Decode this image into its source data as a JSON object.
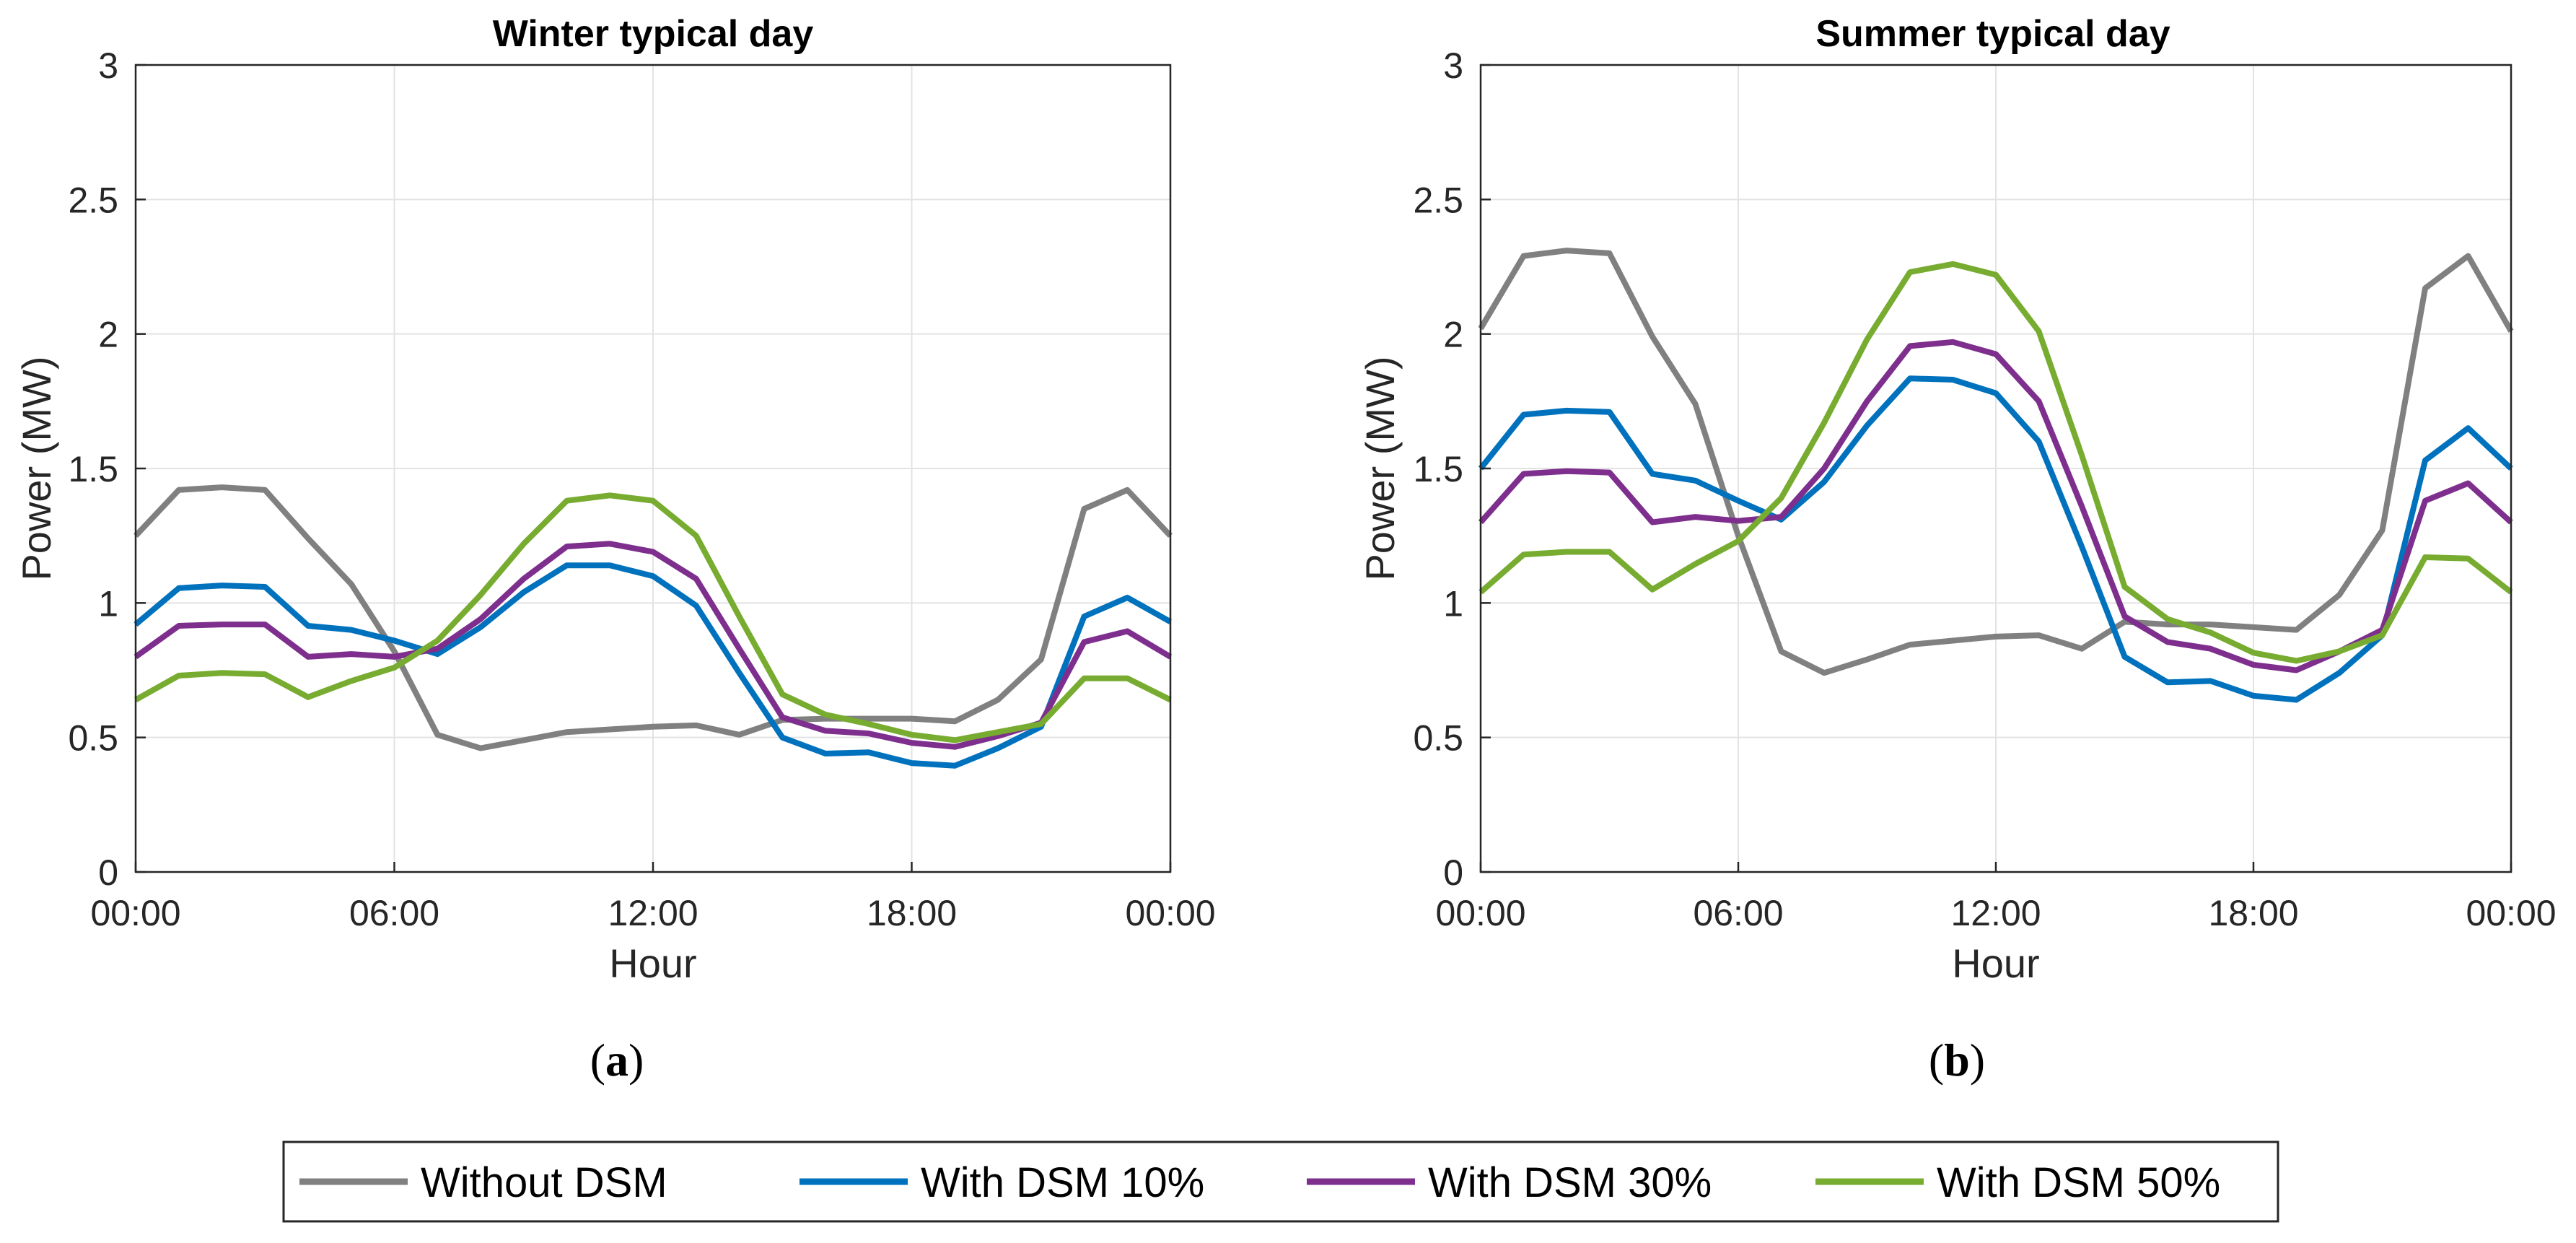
{
  "chart_data": [
    {
      "type": "line",
      "panel_label": "a",
      "title": "Winter typical day",
      "xlabel": "Hour",
      "ylabel": "Power (MW)",
      "xlim": [
        0,
        24
      ],
      "ylim": [
        0,
        3
      ],
      "grid": true,
      "x": [
        0,
        1,
        2,
        3,
        4,
        5,
        6,
        7,
        8,
        9,
        10,
        11,
        12,
        13,
        14,
        15,
        16,
        17,
        18,
        19,
        20,
        21,
        22,
        23,
        24
      ],
      "xticks": [
        0,
        6,
        12,
        18,
        24
      ],
      "xtick_labels": [
        "00:00",
        "06:00",
        "12:00",
        "18:00",
        "00:00"
      ],
      "yticks": [
        0,
        0.5,
        1,
        1.5,
        2,
        2.5,
        3
      ],
      "ytick_labels": [
        "0",
        "0.5",
        "1",
        "1.5",
        "2",
        "2.5",
        "3"
      ],
      "series": [
        {
          "name": "Without DSM",
          "values": [
            1.25,
            1.42,
            1.43,
            1.42,
            1.24,
            1.07,
            0.82,
            0.51,
            0.46,
            0.49,
            0.52,
            0.53,
            0.54,
            0.545,
            0.51,
            0.565,
            0.57,
            0.57,
            0.57,
            0.56,
            0.64,
            0.79,
            1.35,
            1.42,
            1.25
          ]
        },
        {
          "name": "With DSM 10%",
          "values": [
            0.92,
            1.055,
            1.065,
            1.06,
            0.915,
            0.9,
            0.86,
            0.81,
            0.91,
            1.04,
            1.14,
            1.14,
            1.1,
            0.99,
            0.74,
            0.5,
            0.44,
            0.445,
            0.405,
            0.395,
            0.46,
            0.54,
            0.95,
            1.02,
            0.93
          ]
        },
        {
          "name": "With DSM 30%",
          "values": [
            0.8,
            0.915,
            0.92,
            0.92,
            0.8,
            0.81,
            0.8,
            0.83,
            0.94,
            1.09,
            1.21,
            1.22,
            1.19,
            1.09,
            0.83,
            0.575,
            0.525,
            0.515,
            0.48,
            0.465,
            0.505,
            0.555,
            0.855,
            0.895,
            0.8
          ]
        },
        {
          "name": "With DSM 50%",
          "values": [
            0.64,
            0.73,
            0.74,
            0.735,
            0.65,
            0.71,
            0.76,
            0.86,
            1.03,
            1.22,
            1.38,
            1.4,
            1.38,
            1.25,
            0.95,
            0.66,
            0.585,
            0.55,
            0.51,
            0.49,
            0.52,
            0.55,
            0.72,
            0.72,
            0.64
          ]
        }
      ]
    },
    {
      "type": "line",
      "panel_label": "b",
      "title": "Summer typical day",
      "xlabel": "Hour",
      "ylabel": "Power (MW)",
      "xlim": [
        0,
        24
      ],
      "ylim": [
        0,
        3
      ],
      "grid": true,
      "x": [
        0,
        1,
        2,
        3,
        4,
        5,
        6,
        7,
        8,
        9,
        10,
        11,
        12,
        13,
        14,
        15,
        16,
        17,
        18,
        19,
        20,
        21,
        22,
        23,
        24
      ],
      "xticks": [
        0,
        6,
        12,
        18,
        24
      ],
      "xtick_labels": [
        "00:00",
        "06:00",
        "12:00",
        "18:00",
        "00:00"
      ],
      "yticks": [
        0,
        0.5,
        1,
        1.5,
        2,
        2.5,
        3
      ],
      "ytick_labels": [
        "0",
        "0.5",
        "1",
        "1.5",
        "2",
        "2.5",
        "3"
      ],
      "series": [
        {
          "name": "Without DSM",
          "values": [
            2.02,
            2.29,
            2.31,
            2.3,
            1.99,
            1.74,
            1.25,
            0.82,
            0.74,
            0.79,
            0.845,
            0.86,
            0.875,
            0.88,
            0.83,
            0.93,
            0.92,
            0.92,
            0.91,
            0.9,
            1.03,
            1.27,
            2.17,
            2.29,
            2.01
          ]
        },
        {
          "name": "With DSM 10%",
          "values": [
            1.5,
            1.7,
            1.715,
            1.71,
            1.48,
            1.455,
            1.38,
            1.31,
            1.45,
            1.66,
            1.835,
            1.83,
            1.78,
            1.6,
            1.21,
            0.8,
            0.705,
            0.71,
            0.655,
            0.64,
            0.74,
            0.88,
            1.53,
            1.65,
            1.5
          ]
        },
        {
          "name": "With DSM 30%",
          "values": [
            1.3,
            1.48,
            1.49,
            1.485,
            1.3,
            1.32,
            1.305,
            1.32,
            1.5,
            1.75,
            1.955,
            1.97,
            1.925,
            1.75,
            1.36,
            0.95,
            0.855,
            0.83,
            0.77,
            0.75,
            0.82,
            0.9,
            1.38,
            1.445,
            1.3
          ]
        },
        {
          "name": "With DSM 50%",
          "values": [
            1.04,
            1.18,
            1.19,
            1.19,
            1.05,
            1.145,
            1.23,
            1.39,
            1.67,
            1.98,
            2.23,
            2.26,
            2.22,
            2.01,
            1.55,
            1.06,
            0.94,
            0.89,
            0.815,
            0.785,
            0.82,
            0.88,
            1.17,
            1.165,
            1.04
          ]
        }
      ]
    }
  ],
  "legend": {
    "position": "bottom-center",
    "items": [
      {
        "label": "Without DSM",
        "color": "#808080"
      },
      {
        "label": "With DSM 10%",
        "color": "#0072BD"
      },
      {
        "label": "With DSM 30%",
        "color": "#7E2F8E"
      },
      {
        "label": "With DSM 50%",
        "color": "#77AC30"
      }
    ]
  },
  "colors": {
    "grid": "#e3e3e3",
    "axis": "#262626"
  }
}
